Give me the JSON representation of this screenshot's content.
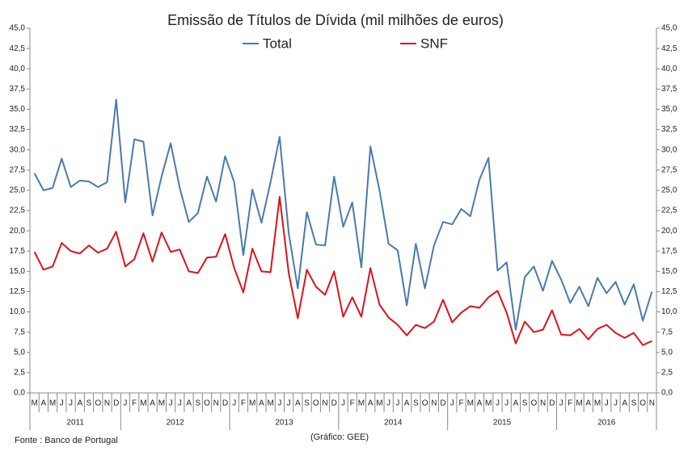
{
  "chart_data": {
    "type": "line",
    "title": "Emissão de Títulos de Dívida (mil milhões de euros)",
    "source": "Fonte : Banco de Portugal",
    "credit": "(Gráfico: GEE)",
    "legend": "top",
    "categories": [
      "M",
      "A",
      "M",
      "J",
      "J",
      "A",
      "S",
      "O",
      "N",
      "D",
      "J",
      "F",
      "M",
      "A",
      "M",
      "J",
      "J",
      "A",
      "S",
      "O",
      "N",
      "D",
      "J",
      "F",
      "M",
      "A",
      "M",
      "J",
      "J",
      "A",
      "S",
      "O",
      "N",
      "D",
      "J",
      "F",
      "M",
      "A",
      "M",
      "J",
      "J",
      "A",
      "S",
      "O",
      "N",
      "D",
      "J",
      "F",
      "M",
      "A",
      "M",
      "J",
      "J",
      "A",
      "S",
      "O",
      "N",
      "D",
      "J",
      "F",
      "M",
      "A",
      "M",
      "J",
      "J",
      "A",
      "S",
      "O",
      "N"
    ],
    "category_years": [
      "2011",
      "2011",
      "2011",
      "2011",
      "2011",
      "2011",
      "2011",
      "2011",
      "2011",
      "2011",
      "2012",
      "2012",
      "2012",
      "2012",
      "2012",
      "2012",
      "2012",
      "2012",
      "2012",
      "2012",
      "2012",
      "2012",
      "2013",
      "2013",
      "2013",
      "2013",
      "2013",
      "2013",
      "2013",
      "2013",
      "2013",
      "2013",
      "2013",
      "2013",
      "2014",
      "2014",
      "2014",
      "2014",
      "2014",
      "2014",
      "2014",
      "2014",
      "2014",
      "2014",
      "2014",
      "2014",
      "2015",
      "2015",
      "2015",
      "2015",
      "2015",
      "2015",
      "2015",
      "2015",
      "2015",
      "2015",
      "2015",
      "2015",
      "2016",
      "2016",
      "2016",
      "2016",
      "2016",
      "2016",
      "2016",
      "2016",
      "2016",
      "2016",
      "2016"
    ],
    "series": [
      {
        "name": "Total",
        "color": "#4a7aab",
        "values": [
          27.1,
          25.0,
          25.3,
          28.9,
          25.4,
          26.2,
          26.1,
          25.4,
          26.0,
          36.2,
          23.5,
          31.3,
          31.0,
          21.9,
          26.7,
          30.8,
          25.3,
          21.1,
          22.2,
          26.7,
          23.6,
          29.2,
          26.0,
          17.0,
          25.1,
          21.0,
          26.0,
          31.6,
          19.7,
          12.9,
          22.3,
          18.3,
          18.2,
          26.7,
          20.5,
          23.5,
          15.5,
          30.4,
          25.0,
          18.4,
          17.6,
          10.8,
          18.4,
          12.9,
          18.2,
          21.1,
          20.8,
          22.7,
          21.8,
          26.3,
          29.0,
          15.1,
          16.1,
          7.8,
          14.3,
          15.6,
          12.6,
          16.3,
          14.0,
          11.1,
          13.1,
          10.7,
          14.2,
          12.3,
          13.7,
          10.9,
          13.4,
          8.9,
          12.5
        ]
      },
      {
        "name": "SNF",
        "color": "#d7141c",
        "values": [
          17.4,
          15.2,
          15.6,
          18.5,
          17.5,
          17.2,
          18.2,
          17.3,
          17.8,
          19.9,
          15.6,
          16.5,
          19.7,
          16.2,
          19.8,
          17.4,
          17.7,
          15.0,
          14.8,
          16.7,
          16.8,
          19.6,
          15.4,
          12.4,
          17.8,
          15.0,
          14.9,
          24.2,
          14.8,
          9.2,
          15.2,
          13.1,
          12.1,
          15.0,
          9.4,
          11.8,
          9.4,
          15.4,
          10.9,
          9.3,
          8.4,
          7.1,
          8.4,
          8.0,
          8.8,
          11.5,
          8.7,
          9.9,
          10.7,
          10.5,
          11.8,
          12.6,
          9.9,
          6.1,
          8.8,
          7.5,
          7.8,
          10.2,
          7.2,
          7.1,
          7.9,
          6.6,
          7.9,
          8.4,
          7.4,
          6.8,
          7.4,
          5.9,
          6.4
        ]
      }
    ],
    "ylim": [
      0,
      45
    ],
    "yticks": [
      {
        "value": 0,
        "label": "0,0"
      },
      {
        "value": 2.5,
        "label": "2,5"
      },
      {
        "value": 5,
        "label": "5,0"
      },
      {
        "value": 7.5,
        "label": "7,5"
      },
      {
        "value": 10,
        "label": "10,0"
      },
      {
        "value": 12.5,
        "label": "12,5"
      },
      {
        "value": 15,
        "label": "15,0"
      },
      {
        "value": 17.5,
        "label": "17,5"
      },
      {
        "value": 20,
        "label": "20,0"
      },
      {
        "value": 22.5,
        "label": "22,5"
      },
      {
        "value": 25,
        "label": "25,0"
      },
      {
        "value": 27.5,
        "label": "27,5"
      },
      {
        "value": 30,
        "label": "30,0"
      },
      {
        "value": 32.5,
        "label": "32,5"
      },
      {
        "value": 35,
        "label": "35,0"
      },
      {
        "value": 37.5,
        "label": "37,5"
      },
      {
        "value": 40,
        "label": "40,0"
      },
      {
        "value": 42.5,
        "label": "42,5"
      },
      {
        "value": 45,
        "label": "45,0"
      }
    ],
    "y2lim": [
      0,
      45
    ],
    "y2ticks": [
      {
        "value": 0,
        "label": "0,0"
      },
      {
        "value": 2.5,
        "label": "2,5"
      },
      {
        "value": 5,
        "label": "5,0"
      },
      {
        "value": 7.5,
        "label": "7,5"
      },
      {
        "value": 10,
        "label": "10,0"
      },
      {
        "value": 12.5,
        "label": "12,5"
      },
      {
        "value": 15,
        "label": "15,0"
      },
      {
        "value": 17.5,
        "label": "17,5"
      },
      {
        "value": 20,
        "label": "20,0"
      },
      {
        "value": 22.5,
        "label": "22,5"
      },
      {
        "value": 25,
        "label": "25,0"
      },
      {
        "value": 27.5,
        "label": "27,5"
      },
      {
        "value": 30,
        "label": "30,0"
      },
      {
        "value": 32.5,
        "label": "32,5"
      },
      {
        "value": 35,
        "label": "35,0"
      },
      {
        "value": 37.5,
        "label": "37,5"
      },
      {
        "value": 40,
        "label": "40,0"
      },
      {
        "value": 42.5,
        "label": "42,5"
      },
      {
        "value": 45,
        "label": "45,0"
      }
    ]
  }
}
